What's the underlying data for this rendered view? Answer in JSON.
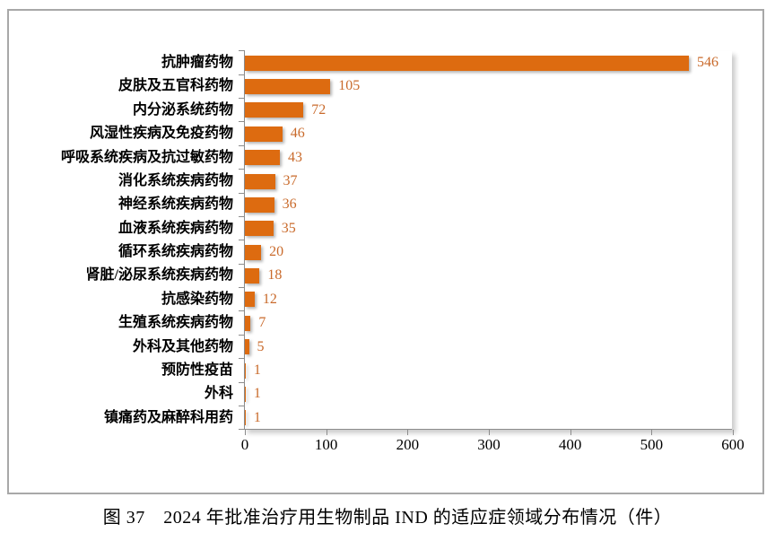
{
  "chart_data": {
    "type": "bar",
    "orientation": "horizontal",
    "categories": [
      "抗肿瘤药物",
      "皮肤及五官科药物",
      "内分泌系统药物",
      "风湿性疾病及免疫药物",
      "呼吸系统疾病及抗过敏药物",
      "消化系统疾病药物",
      "神经系统疾病药物",
      "血液系统疾病药物",
      "循环系统疾病药物",
      "肾脏/泌尿系统疾病药物",
      "抗感染药物",
      "生殖系统疾病药物",
      "外科及其他药物",
      "预防性疫苗",
      "外科",
      "镇痛药及麻醉科用药"
    ],
    "values": [
      546,
      105,
      72,
      46,
      43,
      37,
      36,
      35,
      20,
      18,
      12,
      7,
      5,
      1,
      1,
      1
    ],
    "xlim": [
      0,
      600
    ],
    "x_ticks": [
      0,
      100,
      200,
      300,
      400,
      500,
      600
    ],
    "grid": "off",
    "legend": "none",
    "data_labels": "outside-end",
    "title": "",
    "xlabel": "",
    "ylabel": "",
    "caption": "图 37　2024 年批准治疗用生物制品 IND 的适应症领域分布情况（件）",
    "colors": {
      "bar": "#dd6b10",
      "value_label": "#c96a2b",
      "axis": "#8c8c8c",
      "frame": "#a8a8a8",
      "category_label": "#000000",
      "background": "#ffffff"
    }
  }
}
